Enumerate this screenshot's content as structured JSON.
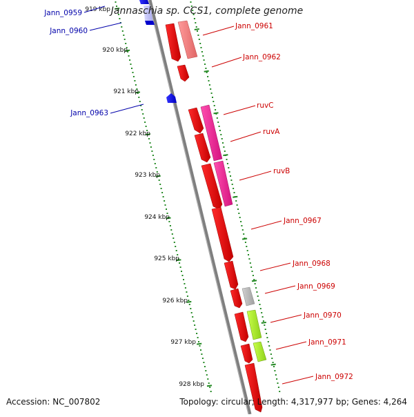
{
  "title": "Jannaschia sp. CCS1, complete genome",
  "footer": {
    "accession": "Accession: NC_007802",
    "summary": "Topology: circular; Length: 4,317,977 bp; Genes: 4,264"
  },
  "ticks": [
    "919 kbp",
    "920 kbp",
    "921 kbp",
    "922 kbp",
    "923 kbp",
    "924 kbp",
    "925 kbp",
    "926 kbp",
    "927 kbp",
    "928 kbp"
  ],
  "genes": [
    {
      "name": "Jann_0959",
      "strand": "reverse",
      "color": "#0000cc"
    },
    {
      "name": "Jann_0960",
      "strand": "reverse",
      "color": "#0000cc"
    },
    {
      "name": "Jann_0961",
      "strand": "forward",
      "color": "#cc0000"
    },
    {
      "name": "Jann_0962",
      "strand": "forward",
      "color": "#cc0000"
    },
    {
      "name": "Jann_0963",
      "strand": "reverse",
      "color": "#0000cc"
    },
    {
      "name": "ruvC",
      "strand": "forward",
      "color": "#cc0000"
    },
    {
      "name": "ruvA",
      "strand": "forward",
      "color": "#cc0000"
    },
    {
      "name": "ruvB",
      "strand": "forward",
      "color": "#cc0000"
    },
    {
      "name": "Jann_0967",
      "strand": "forward",
      "color": "#cc0000"
    },
    {
      "name": "Jann_0968",
      "strand": "forward",
      "color": "#cc0000"
    },
    {
      "name": "Jann_0969",
      "strand": "forward",
      "color": "#cc0000"
    },
    {
      "name": "Jann_0970",
      "strand": "forward",
      "color": "#cc0000"
    },
    {
      "name": "Jann_0971",
      "strand": "forward",
      "color": "#cc0000"
    },
    {
      "name": "Jann_0972",
      "strand": "forward",
      "color": "#cc0000"
    }
  ],
  "colors": {
    "forward_cds": "#ee0000",
    "reverse_cds": "#0000ee",
    "backbone": "#888888",
    "ticks": "#228822"
  }
}
